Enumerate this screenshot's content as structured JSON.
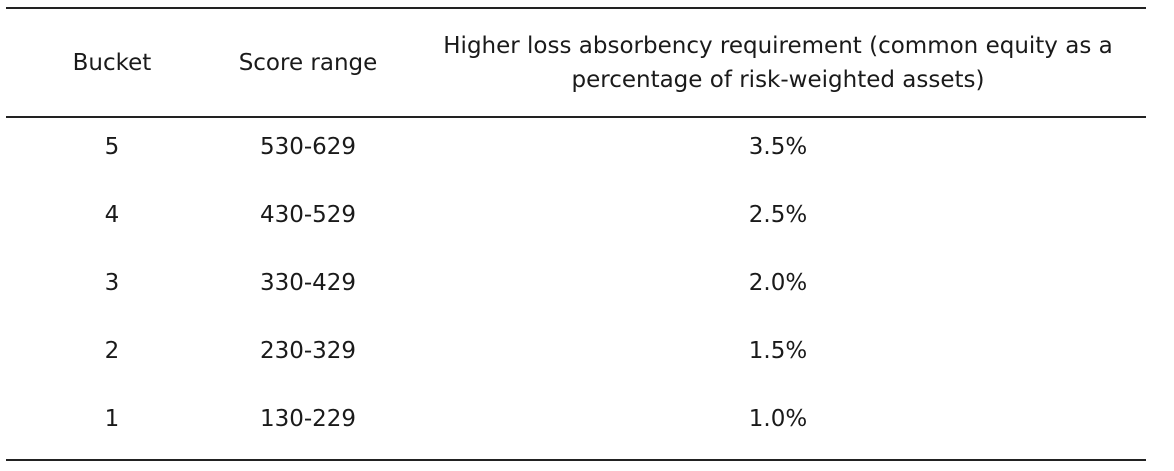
{
  "table": {
    "headers": {
      "bucket": "Bucket",
      "score_range": "Score range",
      "requirement_line1": "Higher loss absorbency requirement (common equity as a",
      "requirement_line2": "percentage of risk-weighted assets)"
    },
    "rows": [
      {
        "bucket": "5",
        "score_range": "530-629",
        "requirement": "3.5%"
      },
      {
        "bucket": "4",
        "score_range": "430-529",
        "requirement": "2.5%"
      },
      {
        "bucket": "3",
        "score_range": "330-429",
        "requirement": "2.0%"
      },
      {
        "bucket": "2",
        "score_range": "230-329",
        "requirement": "1.5%"
      },
      {
        "bucket": "1",
        "score_range": "130-229",
        "requirement": "1.0%"
      }
    ]
  }
}
